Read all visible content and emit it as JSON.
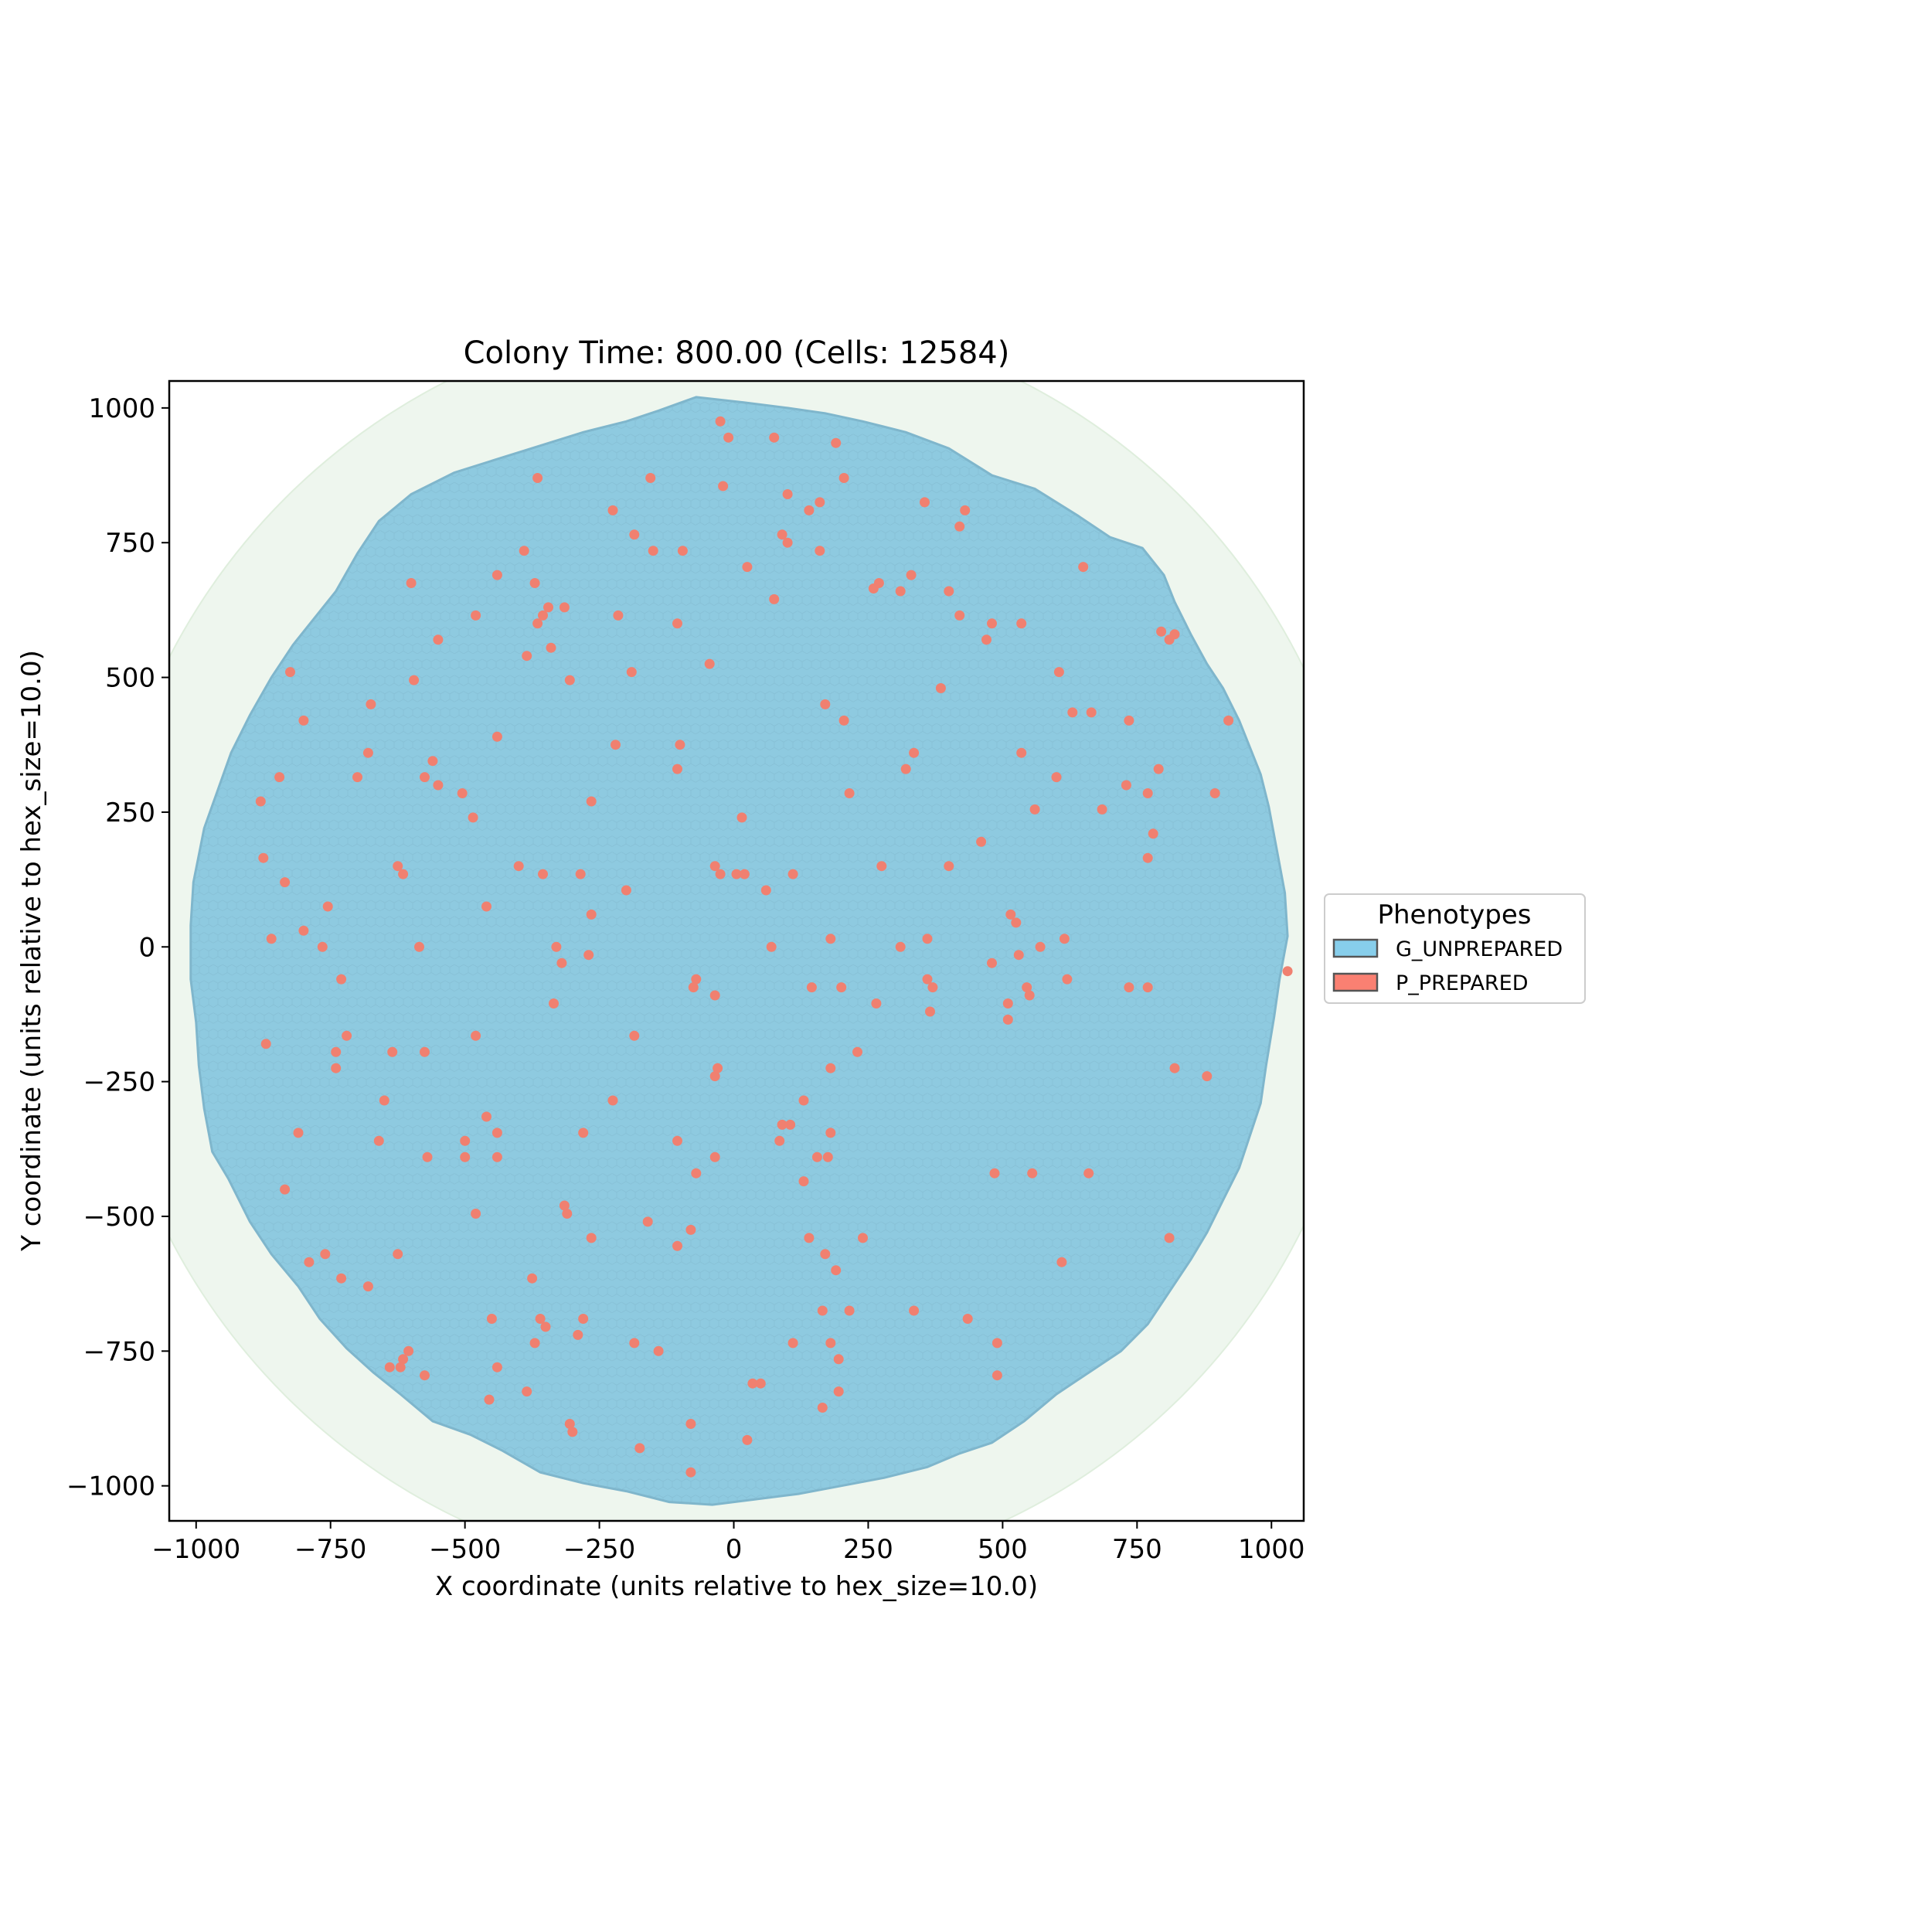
{
  "chart_data": {
    "type": "scatter",
    "title": "Colony Time: 800.00 (Cells: 12584)",
    "xlabel": "X coordinate (units relative to hex_size=10.0)",
    "ylabel": "Y coordinate (units relative to hex_size=10.0)",
    "xlim": [
      -1050,
      1060
    ],
    "ylim": [
      -1065,
      1050
    ],
    "xticks": [
      -1000,
      -750,
      -500,
      -250,
      0,
      250,
      500,
      750,
      1000
    ],
    "xtick_labels": [
      "−1000",
      "−750",
      "−500",
      "−250",
      "0",
      "250",
      "500",
      "750",
      "1000"
    ],
    "yticks": [
      -1000,
      -750,
      -500,
      -250,
      0,
      250,
      500,
      750,
      1000
    ],
    "ytick_labels": [
      "−1000",
      "−750",
      "−500",
      "−250",
      "0",
      "250",
      "500",
      "750",
      "1000"
    ],
    "grid": false,
    "legend": {
      "title": "Phenotypes",
      "placement": "outside-right",
      "entries": [
        {
          "label": "G_UNPREPARED",
          "color": "#87CEEB"
        },
        {
          "label": "P_PREPARED",
          "color": "#FA8072"
        }
      ]
    },
    "colors": {
      "colony": "#8ECAE0",
      "colony_edge": "#7FB6CC",
      "background_disk": "#EEF6EE",
      "prepared": "#F08070"
    },
    "background_disk": {
      "center": [
        0,
        0
      ],
      "radius": 1180
    },
    "colony_boundary": [
      [
        -70,
        1020
      ],
      [
        20,
        1010
      ],
      [
        100,
        1000
      ],
      [
        170,
        990
      ],
      [
        240,
        975
      ],
      [
        320,
        955
      ],
      [
        400,
        925
      ],
      [
        480,
        875
      ],
      [
        560,
        850
      ],
      [
        640,
        800
      ],
      [
        700,
        760
      ],
      [
        760,
        740
      ],
      [
        800,
        690
      ],
      [
        820,
        640
      ],
      [
        850,
        580
      ],
      [
        880,
        525
      ],
      [
        910,
        480
      ],
      [
        940,
        420
      ],
      [
        960,
        370
      ],
      [
        980,
        320
      ],
      [
        995,
        260
      ],
      [
        1010,
        180
      ],
      [
        1025,
        100
      ],
      [
        1030,
        20
      ],
      [
        1015,
        -60
      ],
      [
        1005,
        -130
      ],
      [
        990,
        -220
      ],
      [
        980,
        -290
      ],
      [
        960,
        -350
      ],
      [
        940,
        -410
      ],
      [
        910,
        -470
      ],
      [
        880,
        -530
      ],
      [
        850,
        -580
      ],
      [
        810,
        -640
      ],
      [
        770,
        -700
      ],
      [
        720,
        -750
      ],
      [
        660,
        -790
      ],
      [
        600,
        -830
      ],
      [
        540,
        -880
      ],
      [
        480,
        -920
      ],
      [
        420,
        -940
      ],
      [
        360,
        -965
      ],
      [
        280,
        -985
      ],
      [
        200,
        -1000
      ],
      [
        120,
        -1015
      ],
      [
        40,
        -1025
      ],
      [
        -40,
        -1035
      ],
      [
        -120,
        -1030
      ],
      [
        -200,
        -1010
      ],
      [
        -280,
        -995
      ],
      [
        -360,
        -975
      ],
      [
        -430,
        -935
      ],
      [
        -490,
        -905
      ],
      [
        -560,
        -880
      ],
      [
        -620,
        -830
      ],
      [
        -670,
        -790
      ],
      [
        -720,
        -745
      ],
      [
        -770,
        -690
      ],
      [
        -810,
        -630
      ],
      [
        -860,
        -570
      ],
      [
        -900,
        -510
      ],
      [
        -940,
        -430
      ],
      [
        -970,
        -380
      ],
      [
        -985,
        -300
      ],
      [
        -995,
        -220
      ],
      [
        -1000,
        -140
      ],
      [
        -1010,
        -60
      ],
      [
        -1010,
        40
      ],
      [
        -1005,
        120
      ],
      [
        -985,
        220
      ],
      [
        -960,
        290
      ],
      [
        -935,
        360
      ],
      [
        -900,
        430
      ],
      [
        -860,
        500
      ],
      [
        -820,
        560
      ],
      [
        -780,
        610
      ],
      [
        -740,
        660
      ],
      [
        -700,
        730
      ],
      [
        -660,
        790
      ],
      [
        -600,
        840
      ],
      [
        -520,
        880
      ],
      [
        -440,
        905
      ],
      [
        -360,
        930
      ],
      [
        -280,
        955
      ],
      [
        -200,
        975
      ],
      [
        -140,
        995
      ]
    ],
    "series": [
      {
        "name": "P_PREPARED",
        "points": [
          [
            -25,
            975
          ],
          [
            -10,
            945
          ],
          [
            75,
            945
          ],
          [
            190,
            935
          ],
          [
            -365,
            870
          ],
          [
            -155,
            870
          ],
          [
            -20,
            855
          ],
          [
            205,
            870
          ],
          [
            100,
            840
          ],
          [
            -225,
            810
          ],
          [
            140,
            810
          ],
          [
            160,
            825
          ],
          [
            355,
            825
          ],
          [
            430,
            810
          ],
          [
            420,
            780
          ],
          [
            -185,
            765
          ],
          [
            90,
            765
          ],
          [
            100,
            750
          ],
          [
            -390,
            735
          ],
          [
            -150,
            735
          ],
          [
            -95,
            735
          ],
          [
            160,
            735
          ],
          [
            25,
            705
          ],
          [
            -440,
            690
          ],
          [
            -370,
            675
          ],
          [
            -600,
            675
          ],
          [
            260,
            665
          ],
          [
            270,
            675
          ],
          [
            310,
            660
          ],
          [
            330,
            690
          ],
          [
            400,
            660
          ],
          [
            650,
            705
          ],
          [
            -345,
            630
          ],
          [
            -355,
            615
          ],
          [
            -365,
            600
          ],
          [
            -315,
            630
          ],
          [
            -480,
            615
          ],
          [
            -215,
            615
          ],
          [
            -105,
            600
          ],
          [
            75,
            645
          ],
          [
            420,
            615
          ],
          [
            470,
            570
          ],
          [
            480,
            600
          ],
          [
            535,
            600
          ],
          [
            795,
            585
          ],
          [
            820,
            580
          ],
          [
            810,
            570
          ],
          [
            -550,
            570
          ],
          [
            -340,
            555
          ],
          [
            -385,
            540
          ],
          [
            -45,
            525
          ],
          [
            -825,
            510
          ],
          [
            -595,
            495
          ],
          [
            -305,
            495
          ],
          [
            -190,
            510
          ],
          [
            170,
            450
          ],
          [
            385,
            480
          ],
          [
            605,
            510
          ],
          [
            630,
            435
          ],
          [
            665,
            435
          ],
          [
            -800,
            420
          ],
          [
            -675,
            450
          ],
          [
            205,
            420
          ],
          [
            735,
            420
          ],
          [
            920,
            420
          ],
          [
            -440,
            390
          ],
          [
            -220,
            375
          ],
          [
            -100,
            375
          ],
          [
            -845,
            315
          ],
          [
            -680,
            360
          ],
          [
            -560,
            345
          ],
          [
            -575,
            315
          ],
          [
            -550,
            300
          ],
          [
            -505,
            285
          ],
          [
            -105,
            330
          ],
          [
            -700,
            315
          ],
          [
            320,
            330
          ],
          [
            335,
            360
          ],
          [
            535,
            360
          ],
          [
            600,
            315
          ],
          [
            730,
            300
          ],
          [
            770,
            285
          ],
          [
            790,
            330
          ],
          [
            895,
            285
          ],
          [
            -880,
            270
          ],
          [
            -265,
            270
          ],
          [
            15,
            240
          ],
          [
            215,
            285
          ],
          [
            560,
            255
          ],
          [
            685,
            255
          ],
          [
            -485,
            240
          ],
          [
            460,
            195
          ],
          [
            780,
            210
          ],
          [
            -875,
            165
          ],
          [
            -400,
            150
          ],
          [
            -625,
            150
          ],
          [
            -35,
            150
          ],
          [
            -615,
            135
          ],
          [
            -355,
            135
          ],
          [
            -285,
            135
          ],
          [
            -25,
            135
          ],
          [
            5,
            135
          ],
          [
            20,
            135
          ],
          [
            110,
            135
          ],
          [
            275,
            150
          ],
          [
            400,
            150
          ],
          [
            770,
            165
          ],
          [
            -835,
            120
          ],
          [
            -200,
            105
          ],
          [
            60,
            105
          ],
          [
            -755,
            75
          ],
          [
            -460,
            75
          ],
          [
            -265,
            60
          ],
          [
            515,
            60
          ],
          [
            525,
            45
          ],
          [
            -800,
            30
          ],
          [
            -860,
            15
          ],
          [
            -765,
            0
          ],
          [
            -585,
            0
          ],
          [
            -330,
            0
          ],
          [
            -270,
            -15
          ],
          [
            -320,
            -30
          ],
          [
            70,
            0
          ],
          [
            180,
            15
          ],
          [
            310,
            0
          ],
          [
            360,
            15
          ],
          [
            570,
            0
          ],
          [
            615,
            15
          ],
          [
            480,
            -30
          ],
          [
            530,
            -15
          ],
          [
            -730,
            -60
          ],
          [
            -70,
            -60
          ],
          [
            -75,
            -75
          ],
          [
            -35,
            -90
          ],
          [
            145,
            -75
          ],
          [
            200,
            -75
          ],
          [
            360,
            -60
          ],
          [
            370,
            -75
          ],
          [
            620,
            -60
          ],
          [
            735,
            -75
          ],
          [
            770,
            -75
          ],
          [
            -335,
            -105
          ],
          [
            265,
            -105
          ],
          [
            365,
            -120
          ],
          [
            510,
            -105
          ],
          [
            510,
            -135
          ],
          [
            545,
            -75
          ],
          [
            550,
            -90
          ],
          [
            -720,
            -165
          ],
          [
            -870,
            -180
          ],
          [
            -740,
            -195
          ],
          [
            -740,
            -225
          ],
          [
            -635,
            -195
          ],
          [
            -575,
            -195
          ],
          [
            -480,
            -165
          ],
          [
            -185,
            -165
          ],
          [
            230,
            -195
          ],
          [
            -35,
            -240
          ],
          [
            -30,
            -225
          ],
          [
            180,
            -225
          ],
          [
            820,
            -225
          ],
          [
            880,
            -240
          ],
          [
            -650,
            -285
          ],
          [
            -225,
            -285
          ],
          [
            130,
            -285
          ],
          [
            -460,
            -315
          ],
          [
            -810,
            -345
          ],
          [
            -660,
            -360
          ],
          [
            -500,
            -360
          ],
          [
            -440,
            -345
          ],
          [
            -280,
            -345
          ],
          [
            -105,
            -360
          ],
          [
            90,
            -330
          ],
          [
            105,
            -330
          ],
          [
            85,
            -360
          ],
          [
            180,
            -345
          ],
          [
            -570,
            -390
          ],
          [
            -500,
            -390
          ],
          [
            -440,
            -390
          ],
          [
            -35,
            -390
          ],
          [
            155,
            -390
          ],
          [
            175,
            -390
          ],
          [
            -70,
            -420
          ],
          [
            485,
            -420
          ],
          [
            555,
            -420
          ],
          [
            660,
            -420
          ],
          [
            -835,
            -450
          ],
          [
            130,
            -435
          ],
          [
            -315,
            -480
          ],
          [
            -310,
            -495
          ],
          [
            -480,
            -495
          ],
          [
            -160,
            -510
          ],
          [
            -80,
            -525
          ],
          [
            -265,
            -540
          ],
          [
            -105,
            -555
          ],
          [
            140,
            -540
          ],
          [
            240,
            -540
          ],
          [
            810,
            -540
          ],
          [
            -760,
            -570
          ],
          [
            -790,
            -585
          ],
          [
            -625,
            -570
          ],
          [
            170,
            -570
          ],
          [
            190,
            -600
          ],
          [
            610,
            -585
          ],
          [
            -730,
            -615
          ],
          [
            -680,
            -630
          ],
          [
            -375,
            -615
          ],
          [
            -450,
            -690
          ],
          [
            -360,
            -690
          ],
          [
            -350,
            -705
          ],
          [
            -280,
            -690
          ],
          [
            165,
            -675
          ],
          [
            215,
            -675
          ],
          [
            335,
            -675
          ],
          [
            435,
            -690
          ],
          [
            -370,
            -735
          ],
          [
            -290,
            -720
          ],
          [
            -185,
            -735
          ],
          [
            -140,
            -750
          ],
          [
            110,
            -735
          ],
          [
            180,
            -735
          ],
          [
            490,
            -735
          ],
          [
            -605,
            -750
          ],
          [
            -615,
            -765
          ],
          [
            -620,
            -780
          ],
          [
            -640,
            -780
          ],
          [
            -440,
            -780
          ],
          [
            195,
            -765
          ],
          [
            -575,
            -795
          ],
          [
            -385,
            -825
          ],
          [
            35,
            -810
          ],
          [
            50,
            -810
          ],
          [
            195,
            -825
          ],
          [
            490,
            -795
          ],
          [
            -455,
            -840
          ],
          [
            165,
            -855
          ],
          [
            -305,
            -885
          ],
          [
            -300,
            -900
          ],
          [
            -80,
            -885
          ],
          [
            -175,
            -930
          ],
          [
            25,
            -915
          ],
          [
            -80,
            -975
          ],
          [
            1030,
            -45
          ]
        ]
      }
    ]
  }
}
